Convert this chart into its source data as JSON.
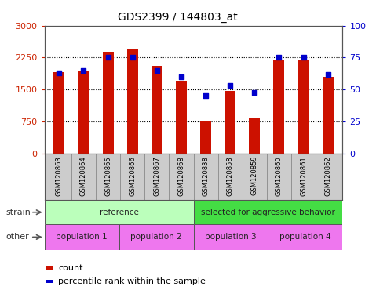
{
  "title": "GDS2399 / 144803_at",
  "samples": [
    "GSM120863",
    "GSM120864",
    "GSM120865",
    "GSM120866",
    "GSM120867",
    "GSM120868",
    "GSM120838",
    "GSM120858",
    "GSM120859",
    "GSM120860",
    "GSM120861",
    "GSM120862"
  ],
  "counts": [
    1900,
    1950,
    2380,
    2460,
    2050,
    1700,
    750,
    1460,
    820,
    2200,
    2200,
    1800
  ],
  "percentile_ranks": [
    63,
    65,
    75,
    75,
    65,
    60,
    45,
    53,
    48,
    75,
    75,
    62
  ],
  "bar_color": "#cc1100",
  "dot_color": "#0000cc",
  "ylim_left": [
    0,
    3000
  ],
  "ylim_right": [
    0,
    100
  ],
  "yticks_left": [
    0,
    750,
    1500,
    2250,
    3000
  ],
  "yticks_right": [
    0,
    25,
    50,
    75,
    100
  ],
  "strain_groups": [
    {
      "text": "reference",
      "start": 0,
      "end": 6,
      "color": "#bbffbb"
    },
    {
      "text": "selected for aggressive behavior",
      "start": 6,
      "end": 12,
      "color": "#44dd44"
    }
  ],
  "other_groups": [
    {
      "text": "population 1",
      "start": 0,
      "end": 3,
      "color": "#ee77ee"
    },
    {
      "text": "population 2",
      "start": 3,
      "end": 6,
      "color": "#ee77ee"
    },
    {
      "text": "population 3",
      "start": 6,
      "end": 9,
      "color": "#ee77ee"
    },
    {
      "text": "population 4",
      "start": 9,
      "end": 12,
      "color": "#ee77ee"
    }
  ],
  "legend_count_color": "#cc1100",
  "legend_dot_color": "#0000cc",
  "bg_color": "#ffffff",
  "plot_bg": "#ffffff",
  "left_label_color": "#cc2200",
  "right_label_color": "#0000cc",
  "xtick_bg": "#cccccc",
  "grid_yticks": [
    750,
    1500,
    2250
  ]
}
